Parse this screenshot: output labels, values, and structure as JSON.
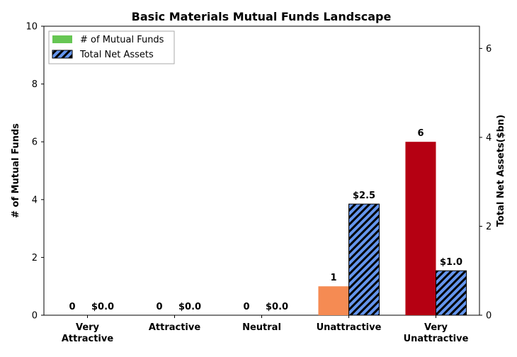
{
  "chart_data": {
    "type": "bar",
    "title": "Basic Materials Mutual Funds Landscape",
    "categories": [
      [
        "Very",
        "Attractive"
      ],
      [
        "Attractive"
      ],
      [
        "Neutral"
      ],
      [
        "Unattractive"
      ],
      [
        "Very",
        "Unattractive"
      ]
    ],
    "series": [
      {
        "name": "# of Mutual Funds",
        "axis": "left",
        "values": [
          0,
          0,
          0,
          1,
          6
        ],
        "labels": [
          "0",
          "0",
          "0",
          "1",
          "6"
        ],
        "colors": [
          "#1a9850",
          "#66bd63",
          "#ffffbf",
          "#f58b53",
          "#b50012"
        ],
        "legend_color": "#66c653"
      },
      {
        "name": "Total Net Assets",
        "axis": "right",
        "values": [
          0.0,
          0.0,
          0.0,
          2.5,
          1.0
        ],
        "labels": [
          "$0.0",
          "$0.0",
          "$0.0",
          "$2.5",
          "$1.0"
        ],
        "color": "#6495ed",
        "hatch": "diagonal"
      }
    ],
    "ylabel_left": "# of Mutual Funds",
    "ylim_left": [
      0,
      10
    ],
    "yticks_left": [
      0,
      2,
      4,
      6,
      8,
      10
    ],
    "ylabel_right": "Total Net Assets($bn)",
    "ylim_right": [
      0,
      6.5
    ],
    "yticks_right": [
      0,
      2,
      4,
      6
    ],
    "legend_position": "upper-left",
    "grid": false
  }
}
